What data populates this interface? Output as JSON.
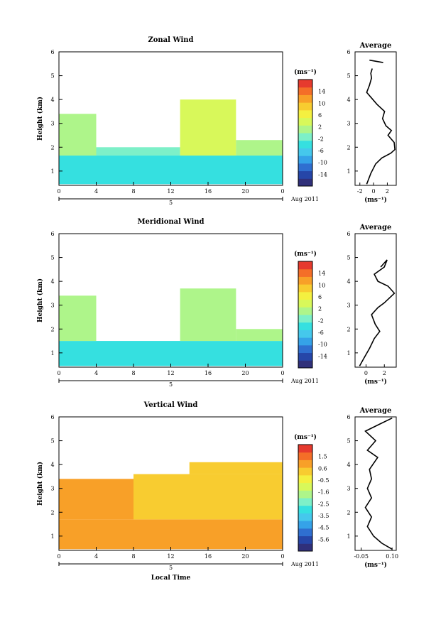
{
  "chart_data": [
    {
      "type": "heatmap",
      "title": "Zonal Wind",
      "xlabel": "",
      "ylabel": "Height (km)",
      "xticks": [
        "0",
        "4",
        "8",
        "12",
        "16",
        "20",
        "0"
      ],
      "yticks": [
        "1",
        "2",
        "3",
        "4",
        "5",
        "6"
      ],
      "xlim": [
        0,
        24
      ],
      "ylim": [
        0.4,
        6
      ],
      "day_bar": {
        "label": "5",
        "date": "Aug 2011"
      },
      "colorbar": {
        "unit": "(ms⁻¹)",
        "ticks": [
          "14",
          "10",
          "6",
          "2",
          "-2",
          "-6",
          "-10",
          "-14"
        ],
        "range": [
          -16,
          16
        ],
        "colors": [
          "#30307a",
          "#2646a8",
          "#2f6fd0",
          "#35a2e8",
          "#45c8ec",
          "#35e0e0",
          "#7df0c8",
          "#aef58a",
          "#d8f85a",
          "#f4f040",
          "#f8cc30",
          "#f8a028",
          "#f46e28",
          "#e63a2e"
        ]
      },
      "regions": [
        {
          "x0": 0,
          "x1": 24,
          "h0": 0.45,
          "h1": 1.65,
          "value": -3.5
        },
        {
          "x0": 0,
          "x1": 4,
          "h0": 1.65,
          "h1": 3.4,
          "value": 0.5
        },
        {
          "x0": 4,
          "x1": 13,
          "h0": 1.65,
          "h1": 2.0,
          "value": -0.5
        },
        {
          "x0": 13,
          "x1": 19,
          "h0": 1.65,
          "h1": 4.0,
          "value": 2.5
        },
        {
          "x0": 19,
          "x1": 24,
          "h0": 1.65,
          "h1": 2.3,
          "value": 1.0
        }
      ],
      "profile": {
        "title": "Average",
        "xlabel": "(ms⁻¹)",
        "xticks": [
          "-2",
          "0",
          "2"
        ],
        "xlim": [
          -2.7,
          3.3
        ],
        "points": [
          [
            -1.0,
            0.45
          ],
          [
            -0.4,
            0.9
          ],
          [
            0.3,
            1.3
          ],
          [
            1.2,
            1.55
          ],
          [
            2.5,
            1.75
          ],
          [
            3.1,
            1.9
          ],
          [
            3.0,
            2.2
          ],
          [
            2.1,
            2.5
          ],
          [
            2.6,
            2.7
          ],
          [
            1.8,
            2.9
          ],
          [
            1.3,
            3.2
          ],
          [
            1.6,
            3.5
          ],
          [
            0.5,
            3.8
          ],
          [
            -0.4,
            4.1
          ],
          [
            -1.0,
            4.3
          ],
          [
            -0.6,
            4.6
          ],
          [
            -0.3,
            4.9
          ],
          [
            -0.4,
            5.1
          ],
          [
            -0.2,
            5.3
          ]
        ],
        "segment": [
          [
            -0.6,
            5.65
          ],
          [
            1.4,
            5.55
          ]
        ]
      }
    },
    {
      "type": "heatmap",
      "title": "Meridional Wind",
      "xlabel": "",
      "ylabel": "Height (km)",
      "xticks": [
        "0",
        "4",
        "8",
        "12",
        "16",
        "20",
        "0"
      ],
      "yticks": [
        "1",
        "2",
        "3",
        "4",
        "5",
        "6"
      ],
      "xlim": [
        0,
        24
      ],
      "ylim": [
        0.4,
        6
      ],
      "day_bar": {
        "label": "5",
        "date": "Aug 2011"
      },
      "colorbar": {
        "unit": "(ms⁻¹)",
        "ticks": [
          "14",
          "10",
          "6",
          "2",
          "-2",
          "-6",
          "-10",
          "-14"
        ],
        "range": [
          -16,
          16
        ],
        "colors": [
          "#30307a",
          "#2646a8",
          "#2f6fd0",
          "#35a2e8",
          "#45c8ec",
          "#35e0e0",
          "#7df0c8",
          "#aef58a",
          "#d8f85a",
          "#f4f040",
          "#f8cc30",
          "#f8a028",
          "#f46e28",
          "#e63a2e"
        ]
      },
      "regions": [
        {
          "x0": 0,
          "x1": 24,
          "h0": 0.45,
          "h1": 1.5,
          "value": -3.5
        },
        {
          "x0": 0,
          "x1": 4,
          "h0": 1.5,
          "h1": 3.4,
          "value": 0.5
        },
        {
          "x0": 13,
          "x1": 19,
          "h0": 1.5,
          "h1": 3.7,
          "value": 2.0
        },
        {
          "x0": 19,
          "x1": 24,
          "h0": 1.5,
          "h1": 2.0,
          "value": 1.5
        }
      ],
      "profile": {
        "title": "Average",
        "xlabel": "(ms⁻¹)",
        "xticks": [
          "0",
          "2"
        ],
        "xlim": [
          -1.2,
          3.3
        ],
        "points": [
          [
            -0.7,
            0.45
          ],
          [
            -0.2,
            0.8
          ],
          [
            0.4,
            1.2
          ],
          [
            0.9,
            1.6
          ],
          [
            1.5,
            1.9
          ],
          [
            1.0,
            2.2
          ],
          [
            0.6,
            2.6
          ],
          [
            1.3,
            2.9
          ],
          [
            2.0,
            3.1
          ],
          [
            3.1,
            3.5
          ],
          [
            2.4,
            3.8
          ],
          [
            1.3,
            4.0
          ],
          [
            0.9,
            4.3
          ],
          [
            2.0,
            4.6
          ],
          [
            2.3,
            4.9
          ],
          [
            1.6,
            4.6
          ]
        ]
      }
    },
    {
      "type": "heatmap",
      "title": "Vertical Wind",
      "xlabel": "Local Time",
      "ylabel": "Height (km)",
      "xticks": [
        "0",
        "4",
        "8",
        "12",
        "16",
        "20",
        "0"
      ],
      "yticks": [
        "1",
        "2",
        "3",
        "4",
        "5",
        "6"
      ],
      "xlim": [
        0,
        24
      ],
      "ylim": [
        0.4,
        6
      ],
      "day_bar": {
        "label": "5",
        "date": "Aug 2011"
      },
      "colorbar": {
        "unit": "(ms⁻¹)",
        "ticks": [
          "1.5",
          "0.6",
          "-0.5",
          "-1.6",
          "-2.5",
          "-3.5",
          "-4.5",
          "-5.6"
        ],
        "range": [
          -6.2,
          2.0
        ],
        "colors": [
          "#30307a",
          "#2646a8",
          "#2f6fd0",
          "#35a2e8",
          "#45c8ec",
          "#35e0e0",
          "#7df0c8",
          "#aef58a",
          "#d8f85a",
          "#f4f040",
          "#f8cc30",
          "#f8a028",
          "#f46e28",
          "#e63a2e"
        ]
      },
      "regions": [
        {
          "x0": 0,
          "x1": 24,
          "h0": 0.45,
          "h1": 1.7,
          "value": 0.4
        },
        {
          "x0": 0,
          "x1": 8,
          "h0": 1.7,
          "h1": 3.4,
          "value": 0.3
        },
        {
          "x0": 8,
          "x1": 24,
          "h0": 1.7,
          "h1": 3.6,
          "value": 0.2
        },
        {
          "x0": 14,
          "x1": 24,
          "h0": 3.6,
          "h1": 4.1,
          "value": 0.1
        }
      ],
      "profile": {
        "title": "Average",
        "xlabel": "(ms⁻¹)",
        "xticks": [
          "-0.05",
          "0.10"
        ],
        "xlim": [
          -0.08,
          0.12
        ],
        "points": [
          [
            0.1,
            0.45
          ],
          [
            0.05,
            0.7
          ],
          [
            0.01,
            1.0
          ],
          [
            -0.02,
            1.4
          ],
          [
            0.0,
            1.8
          ],
          [
            -0.03,
            2.2
          ],
          [
            0.0,
            2.6
          ],
          [
            -0.02,
            3.0
          ],
          [
            0.0,
            3.4
          ],
          [
            -0.01,
            3.8
          ],
          [
            0.03,
            4.3
          ],
          [
            -0.02,
            4.6
          ],
          [
            0.02,
            5.0
          ],
          [
            -0.03,
            5.4
          ],
          [
            0.04,
            5.7
          ],
          [
            0.1,
            5.95
          ]
        ]
      }
    }
  ]
}
